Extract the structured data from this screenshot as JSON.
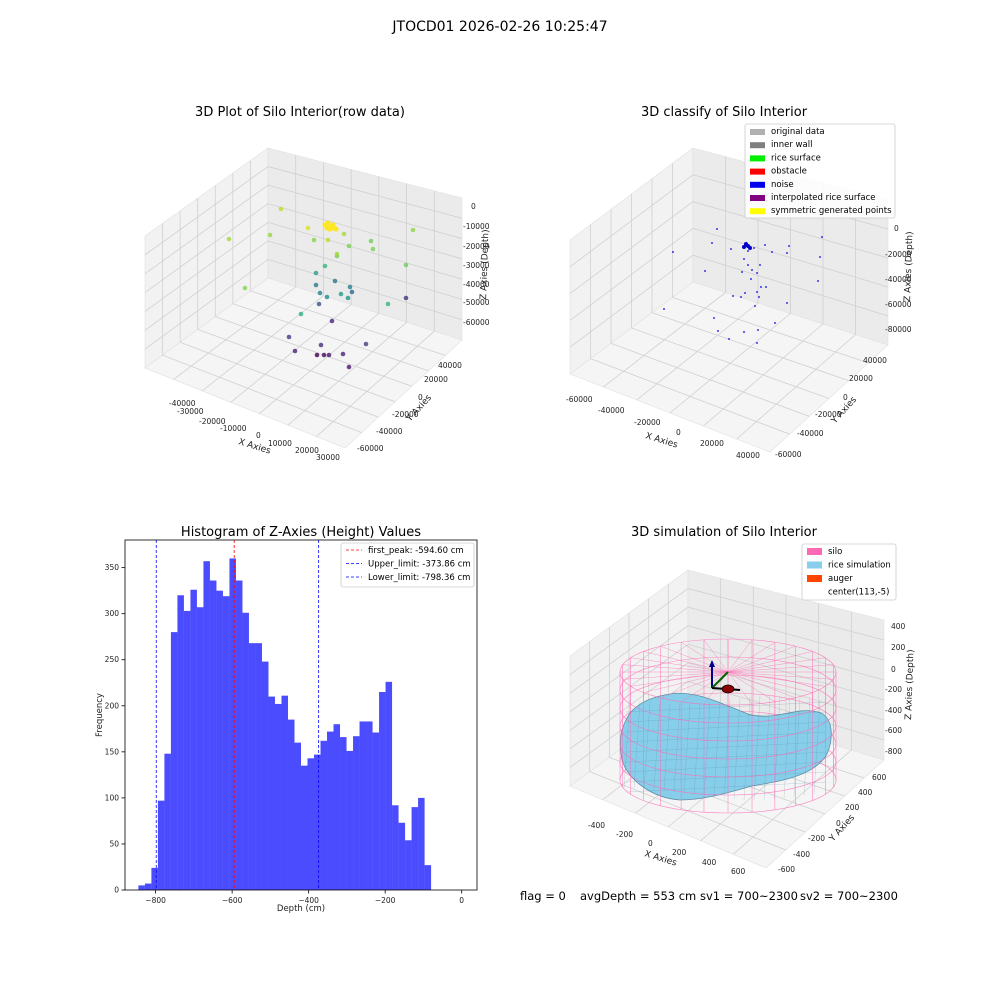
{
  "figure_title": "JTOCD01 2026-02-26 10:25:47",
  "footer": {
    "flag": "flag = 0",
    "avg_depth": "avgDepth = 553 cm",
    "sv1": "sv1 = 700~2300",
    "sv2": "sv2 = 700~2300"
  },
  "raw_plot": {
    "title": "3D Plot of Silo Interior(row data)",
    "xlabel": "X Axies",
    "ylabel": "Y Axies",
    "zlabel": "Z Axies (Depth)",
    "x_ticks": [
      "-40000",
      "-30000",
      "-20000",
      "-10000",
      "0",
      "10000",
      "20000",
      "30000"
    ],
    "y_ticks": [
      "40000",
      "20000",
      "0",
      "-20000",
      "-40000",
      "-60000"
    ],
    "z_ticks": [
      "0",
      "-10000",
      "-20000",
      "-30000",
      "-40000",
      "-50000",
      "-60000"
    ]
  },
  "classify_plot": {
    "title": "3D classify of Silo Interior",
    "xlabel": "X Axies",
    "ylabel": "Y Axies",
    "zlabel": "Z Axies (Depth)",
    "x_ticks": [
      "-60000",
      "-40000",
      "-20000",
      "0",
      "20000",
      "40000"
    ],
    "y_ticks": [
      "40000",
      "20000",
      "0",
      "-20000",
      "-40000",
      "-60000"
    ],
    "z_ticks": [
      "0",
      "-20000",
      "-40000",
      "-60000",
      "-80000"
    ],
    "legend": [
      {
        "label": "original data",
        "color": "#b0b0b0"
      },
      {
        "label": "inner wall",
        "color": "#808080"
      },
      {
        "label": "rice surface",
        "color": "#00ee00"
      },
      {
        "label": "obstacle",
        "color": "#ff0000"
      },
      {
        "label": "noise",
        "color": "#0000ee"
      },
      {
        "label": "interpolated rice surface",
        "color": "#800080"
      },
      {
        "label": "symmetric generated points",
        "color": "#ffff00"
      }
    ]
  },
  "sim_plot": {
    "title": "3D simulation of Silo Interior",
    "xlabel": "X Axies",
    "ylabel": "Y Axies",
    "zlabel": "Z Axies (Depth)",
    "x_ticks": [
      "-400",
      "-200",
      "0",
      "200",
      "400",
      "600"
    ],
    "y_ticks": [
      "600",
      "400",
      "200",
      "0",
      "-200",
      "-400",
      "-600"
    ],
    "z_ticks": [
      "400",
      "200",
      "0",
      "-200",
      "-400",
      "-600",
      "-800"
    ],
    "legend": [
      {
        "label": "silo",
        "color": "#ff69b4"
      },
      {
        "label": "rice simulation",
        "color": "#87ceeb"
      },
      {
        "label": "auger",
        "color": "#ff4500"
      },
      {
        "label": "center(113,-5)",
        "color": ""
      }
    ]
  },
  "chart_data": [
    {
      "type": "bar",
      "title": "Histogram of Z-Axies (Height) Values",
      "xlabel": "Depth (cm)",
      "ylabel": "Frequency",
      "xlim": [
        -880,
        40
      ],
      "ylim": [
        0,
        380
      ],
      "x_ticks": [
        -800,
        -600,
        -400,
        -200,
        0
      ],
      "y_ticks": [
        0,
        50,
        100,
        150,
        200,
        250,
        300,
        350
      ],
      "bin_start": -845,
      "bin_width": 17,
      "values": [
        5,
        7,
        24,
        97,
        148,
        280,
        320,
        303,
        326,
        307,
        357,
        336,
        325,
        319,
        360,
        336,
        301,
        268,
        268,
        248,
        210,
        202,
        211,
        185,
        160,
        135,
        143,
        147,
        162,
        172,
        180,
        166,
        151,
        167,
        183,
        183,
        171,
        215,
        226,
        92,
        73,
        54,
        90,
        100,
        27
      ],
      "bar_color": "#0000ff",
      "lines": [
        {
          "label": "first_peak: -594.60 cm",
          "x": -594.6,
          "color": "#ff0000"
        },
        {
          "label": "Upper_limit: -373.86 cm",
          "x": -373.86,
          "color": "#0000ff"
        },
        {
          "label": "Lower_limit: -798.36 cm",
          "x": -798.36,
          "color": "#0000ff"
        }
      ],
      "legend_position": "top-right"
    }
  ]
}
